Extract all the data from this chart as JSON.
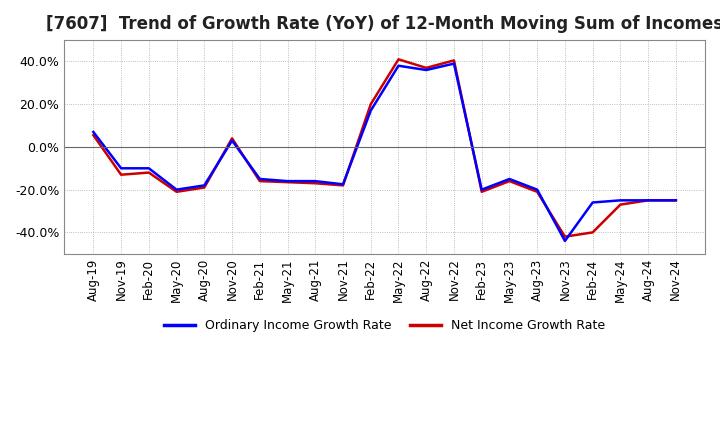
{
  "title": "[7607]  Trend of Growth Rate (YoY) of 12-Month Moving Sum of Incomes",
  "title_fontsize": 12,
  "legend_labels": [
    "Ordinary Income Growth Rate",
    "Net Income Growth Rate"
  ],
  "legend_colors": [
    "#0000FF",
    "#CC0000"
  ],
  "ylim": [
    -50,
    50
  ],
  "yticks": [
    -40,
    -20,
    0,
    20,
    40
  ],
  "background_color": "#FFFFFF",
  "grid_color": "#AAAAAA",
  "x_labels": [
    "Aug-19",
    "Nov-19",
    "Feb-20",
    "May-20",
    "Aug-20",
    "Nov-20",
    "Feb-21",
    "May-21",
    "Aug-21",
    "Nov-21",
    "Feb-22",
    "May-22",
    "Aug-22",
    "Nov-22",
    "Feb-23",
    "May-23",
    "Aug-23",
    "Nov-23",
    "Feb-24",
    "May-24",
    "Aug-24",
    "Nov-24"
  ],
  "ordinary_income": [
    7.0,
    -10.0,
    -10.0,
    -20.0,
    -18.0,
    3.0,
    -15.0,
    -16.0,
    -16.0,
    -17.5,
    17.0,
    38.0,
    36.0,
    39.0,
    -20.0,
    -15.0,
    -20.0,
    -44.0,
    -26.0,
    -25.0,
    -25.0,
    -25.0
  ],
  "net_income": [
    5.5,
    -13.0,
    -12.0,
    -21.0,
    -19.0,
    4.0,
    -16.0,
    -16.5,
    -17.0,
    -18.0,
    20.0,
    41.0,
    37.0,
    40.5,
    -21.0,
    -16.0,
    -21.0,
    -42.0,
    -40.0,
    -27.0,
    -25.0,
    -25.0
  ]
}
